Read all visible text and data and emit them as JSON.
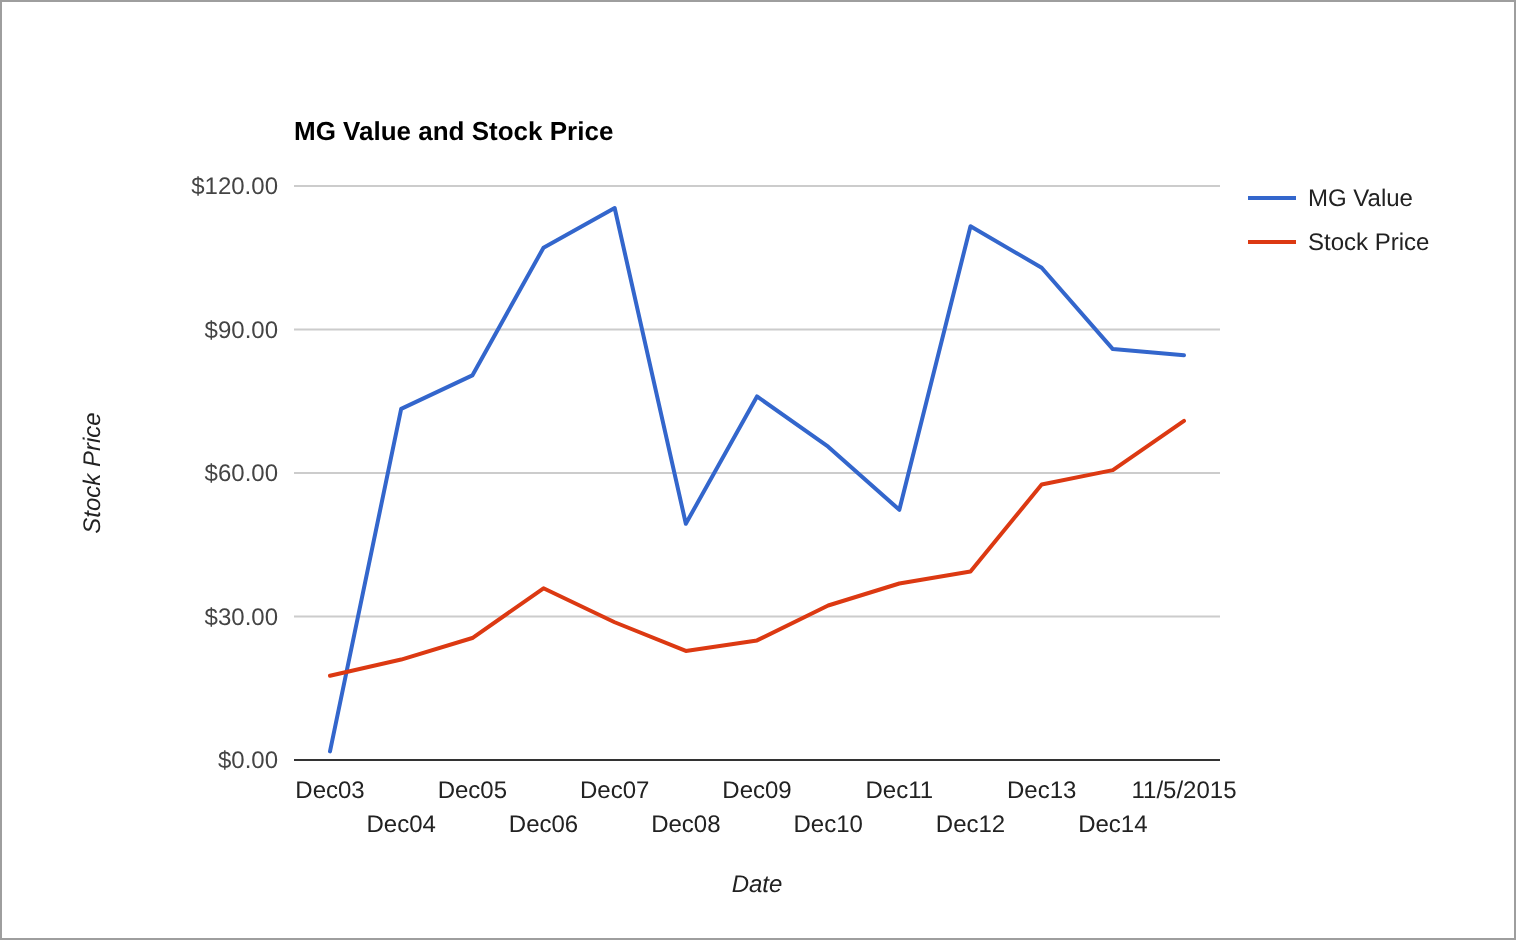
{
  "chart_data": {
    "type": "line",
    "title": "MG Value and Stock Price",
    "xlabel": "Date",
    "ylabel": "Stock Price",
    "categories": [
      "Dec03",
      "Dec04",
      "Dec05",
      "Dec06",
      "Dec07",
      "Dec08",
      "Dec09",
      "Dec10",
      "Dec11",
      "Dec12",
      "Dec13",
      "Dec14",
      "11/5/2015"
    ],
    "series": [
      {
        "name": "MG Value",
        "color": "#3366cc",
        "values": [
          1.8,
          73.4,
          80.4,
          107.1,
          115.4,
          49.4,
          76.0,
          65.5,
          52.3,
          111.6,
          102.9,
          85.9,
          84.6
        ]
      },
      {
        "name": "Stock Price",
        "color": "#dc3912",
        "values": [
          17.6,
          21.0,
          25.5,
          35.9,
          28.8,
          22.8,
          25.0,
          32.3,
          36.9,
          39.4,
          57.6,
          60.6,
          70.9
        ]
      }
    ],
    "ylim": [
      0,
      120
    ],
    "yticks": [
      {
        "value": 0,
        "label": "$0.00"
      },
      {
        "value": 30,
        "label": "$30.00"
      },
      {
        "value": 60,
        "label": "$60.00"
      },
      {
        "value": 90,
        "label": "$90.00"
      },
      {
        "value": 120,
        "label": "$120.00"
      }
    ],
    "grid": "y",
    "legend": "right",
    "marker": "none",
    "line_style": "solid"
  }
}
